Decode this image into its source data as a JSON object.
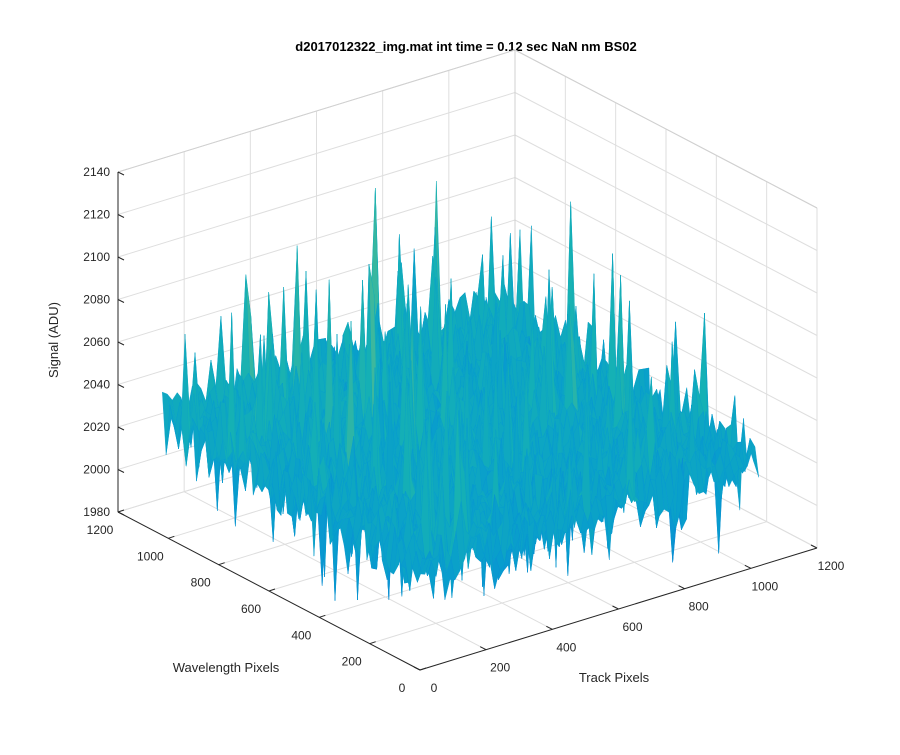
{
  "chart_data": {
    "type": "surface",
    "title": "d2017012322_img.mat int time = 0.12 sec  NaN nm BS02",
    "xlabel": "Track Pixels",
    "ylabel": "Wavelength Pixels",
    "zlabel": "Signal (ADU)",
    "xlim": [
      0,
      1200
    ],
    "ylim": [
      0,
      1200
    ],
    "zlim": [
      1980,
      2140
    ],
    "xticks": [
      "0",
      "200",
      "400",
      "600",
      "800",
      "1000",
      "1200"
    ],
    "yticks": [
      "0",
      "200",
      "400",
      "600",
      "800",
      "1000",
      "1200"
    ],
    "zticks": [
      "1980",
      "2000",
      "2020",
      "2040",
      "2060",
      "2080",
      "2100",
      "2120",
      "2140"
    ],
    "grid": true,
    "colormap": "parula",
    "data_summary": {
      "x_range": [
        0,
        1024
      ],
      "y_range": [
        0,
        1024
      ],
      "mean_signal": 2030,
      "signal_min_approx": 1990,
      "signal_max_approx": 2110,
      "noise_character": "high-frequency pixel noise with sparse spikes"
    }
  }
}
